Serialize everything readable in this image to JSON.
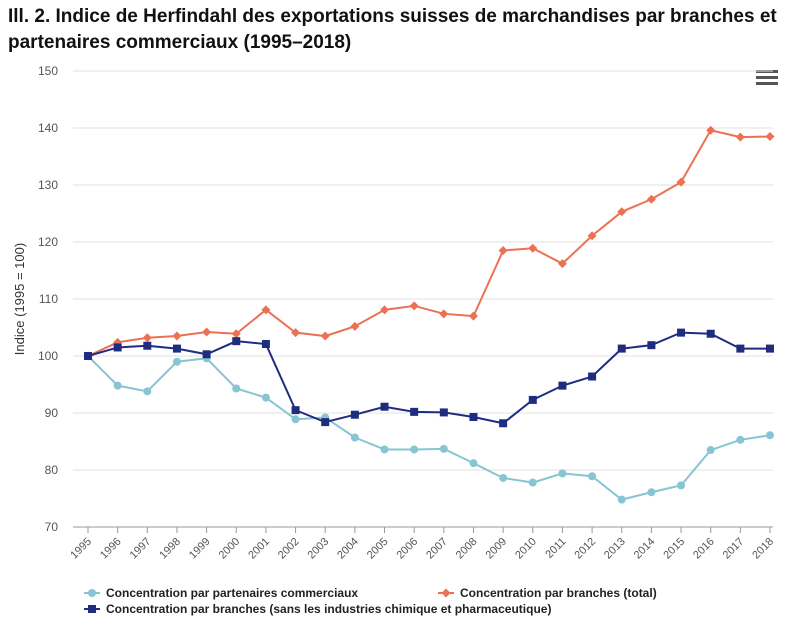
{
  "title": "Ill. 2. Indice de Herfindahl des exportations suisses de marchandises par branches et partenaires commerciaux (1995–2018)",
  "menu_icon": "hamburger-menu-icon",
  "chart_data": {
    "type": "line",
    "title": "Ill. 2. Indice de Herfindahl des exportations suisses de marchandises par branches et partenaires commerciaux (1995–2018)",
    "xlabel": "",
    "ylabel": "Indice (1995 = 100)",
    "ylim": [
      70,
      150
    ],
    "yticks": [
      70,
      80,
      90,
      100,
      110,
      120,
      130,
      140,
      150
    ],
    "x": [
      "1995",
      "1996",
      "1997",
      "1998",
      "1999",
      "2000",
      "2001",
      "2002",
      "2003",
      "2004",
      "2005",
      "2006",
      "2007",
      "2008",
      "2009",
      "2010",
      "2011",
      "2012",
      "2013",
      "2014",
      "2015",
      "2016",
      "2017",
      "2018"
    ],
    "grid": true,
    "legend_position": "bottom",
    "series": [
      {
        "name": "Concentration par partenaires commerciaux",
        "color": "#86c5d1",
        "marker": "circle",
        "values": [
          100,
          94.8,
          93.8,
          99,
          99.6,
          94.3,
          92.7,
          88.9,
          89.2,
          85.7,
          83.6,
          83.6,
          83.7,
          81.2,
          78.6,
          77.8,
          79.4,
          78.9,
          74.8,
          76.1,
          77.3,
          83.5,
          85.3,
          86.1
        ]
      },
      {
        "name": "Concentration par branches (total)",
        "color": "#ec7153",
        "marker": "diamond",
        "values": [
          100,
          102.4,
          103.2,
          103.5,
          104.2,
          103.9,
          108.1,
          104.1,
          103.5,
          105.2,
          108.1,
          108.8,
          107.4,
          107,
          118.5,
          118.9,
          116.2,
          121.1,
          125.3,
          127.5,
          130.5,
          139.6,
          138.4,
          138.5
        ]
      },
      {
        "name": "Concentration par branches (sans les industries chimique et pharmaceutique)",
        "color": "#1f2d80",
        "marker": "square",
        "values": [
          100,
          101.5,
          101.8,
          101.3,
          100.3,
          102.6,
          102.1,
          90.5,
          88.4,
          89.7,
          91.1,
          90.2,
          90.1,
          89.3,
          88.2,
          92.3,
          94.8,
          96.4,
          101.3,
          101.9,
          104.1,
          103.9,
          101.3,
          101.3
        ]
      }
    ]
  }
}
